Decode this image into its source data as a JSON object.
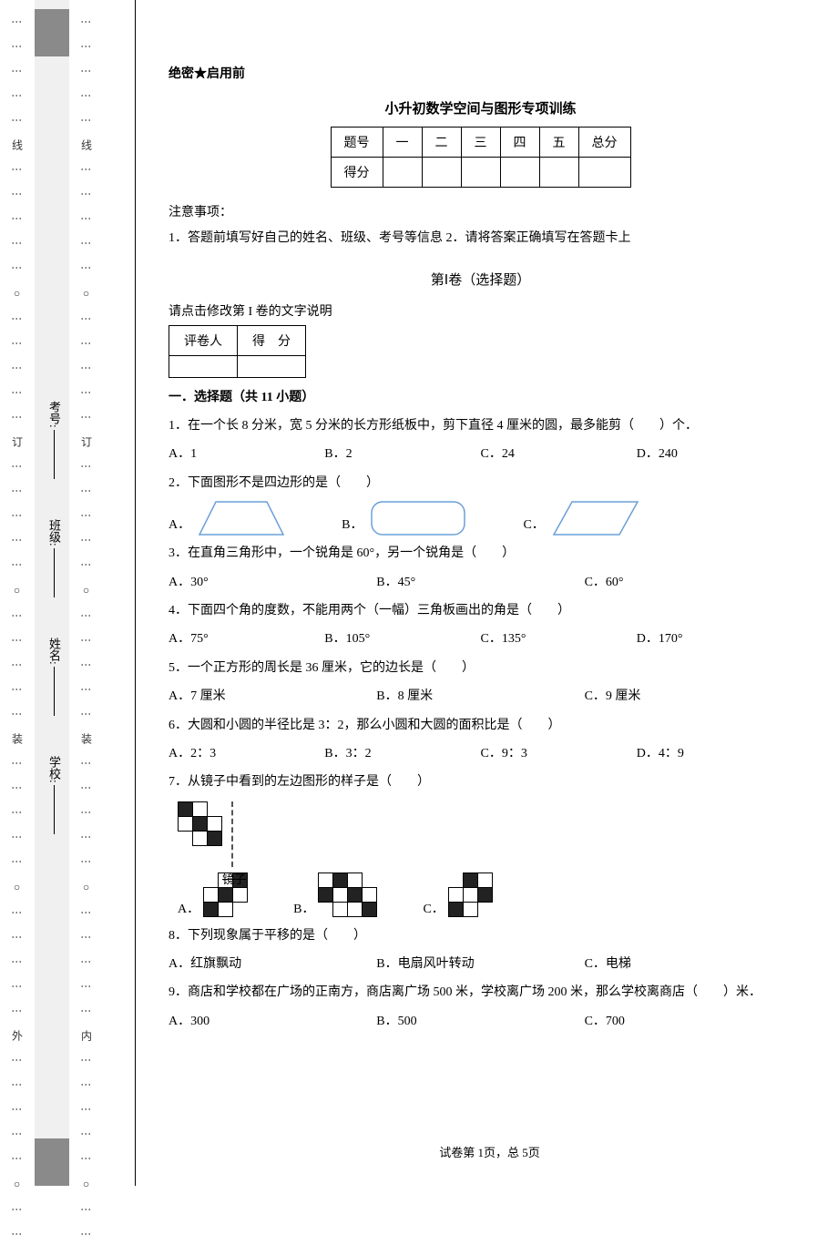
{
  "binding": {
    "outer_marks": "⋮ ⋮ ○ ⋮ ⋮ ⋮ ⋮ ⋮ 线 ⋮ ⋮ ⋮ ⋮ ⋮ ○ ⋮ ⋮ ⋮ ⋮ ⋮ 订 ⋮ ⋮ ⋮ ⋮ ⋮ ○ ⋮ ⋮ ⋮ ⋮ ⋮ 装 ⋮ ⋮ ⋮ ⋮ ⋮ ○ ⋮ ⋮ ⋮ ⋮ ⋮ 外 ⋮ ⋮ ⋮ ⋮ ⋮ ○ ⋮ ⋮",
    "inner_marks": "⋮ ⋮ ○ ⋮ ⋮ ⋮ ⋮ ⋮ 线 ⋮ ⋮ ⋮ ⋮ ⋮ ○ ⋮ ⋮ ⋮ ⋮ ⋮ 订 ⋮ ⋮ ⋮ ⋮ ⋮ ○ ⋮ ⋮ ⋮ ⋮ ⋮ 装 ⋮ ⋮ ⋮ ⋮ ⋮ ○ ⋮ ⋮ ⋮ ⋮ ⋮ 内 ⋮ ⋮ ⋮ ⋮ ⋮ ○ ⋮ ⋮",
    "fields": {
      "school": "学校:",
      "name": "姓名:",
      "class": "班级:",
      "exam_no": "考号:"
    }
  },
  "secret": "绝密★启用前",
  "title": "小升初数学空间与图形专项训练",
  "score_table": {
    "headers": [
      "题号",
      "一",
      "二",
      "三",
      "四",
      "五",
      "总分"
    ],
    "row_label": "得分"
  },
  "notice_label": "注意事项：",
  "notice_text": "1．答题前填写好自己的姓名、班级、考号等信息 2．请将答案正确填写在答题卡上",
  "section1_title": "第Ⅰ卷（选择题）",
  "edit_hint": "请点击修改第 I 卷的文字说明",
  "grader": {
    "c1": "评卷人",
    "c2": "得　分"
  },
  "part1_heading": "一．选择题（共 11 小题）",
  "q1": {
    "text": "1．在一个长 8 分米，宽 5 分米的长方形纸板中，剪下直径 4 厘米的圆，最多能剪（　　）个．",
    "a": "A．1",
    "b": "B．2",
    "c": "C．24",
    "d": "D．240"
  },
  "q2": {
    "text": "2．下面图形不是四边形的是（　　）",
    "a": "A．",
    "b": "B．",
    "c": "C．",
    "shape_stroke": "#6aa0d8",
    "shape_stroke_width": 1.5
  },
  "q3": {
    "text": "3．在直角三角形中，一个锐角是 60°，另一个锐角是（　　）",
    "a": "A．30°",
    "b": "B．45°",
    "c": "C．60°"
  },
  "q4": {
    "text": "4．下面四个角的度数，不能用两个（一幅）三角板画出的角是（　　）",
    "a": "A．75°",
    "b": "B．105°",
    "c": "C．135°",
    "d": "D．170°"
  },
  "q5": {
    "text": "5．一个正方形的周长是 36 厘米，它的边长是（　　）",
    "a": "A．7 厘米",
    "b": "B．8 厘米",
    "c": "C．9 厘米"
  },
  "q6": {
    "text": "6．大圆和小圆的半径比是 3：2，那么小圆和大圆的面积比是（　　）",
    "a": "A．2：3",
    "b": "B．3：2",
    "c": "C．9：3",
    "d": "D．4：9"
  },
  "q7": {
    "text": "7．从镜子中看到的左边图形的样子是（　　）",
    "mirror_label": "镜子",
    "a": "A．",
    "b": "B．",
    "c": "C．",
    "original_grid": [
      [
        "b",
        "w",
        "n"
      ],
      [
        "w",
        "b",
        "w"
      ],
      [
        "n",
        "w",
        "b"
      ]
    ],
    "opt_a_grid": [
      [
        "n",
        "w",
        "b"
      ],
      [
        "w",
        "b",
        "w"
      ],
      [
        "b",
        "w",
        "n"
      ]
    ],
    "opt_b_grid": [
      [
        "w",
        "b",
        "w",
        "n"
      ],
      [
        "b",
        "w",
        "b",
        "w"
      ],
      [
        "n",
        "w",
        "w",
        "b"
      ]
    ],
    "opt_c_grid": [
      [
        "n",
        "b",
        "w"
      ],
      [
        "w",
        "w",
        "b"
      ],
      [
        "b",
        "w",
        "n"
      ]
    ]
  },
  "q8": {
    "text": "8．下列现象属于平移的是（　　）",
    "a": "A．红旗飘动",
    "b": "B．电扇风叶转动",
    "c": "C．电梯"
  },
  "q9": {
    "text": "9．商店和学校都在广场的正南方，商店离广场 500 米，学校离广场 200 米，那么学校离商店（　　）米．",
    "a": "A．300",
    "b": "B．500",
    "c": "C．700"
  },
  "footer": "试卷第 1页，总 5页"
}
